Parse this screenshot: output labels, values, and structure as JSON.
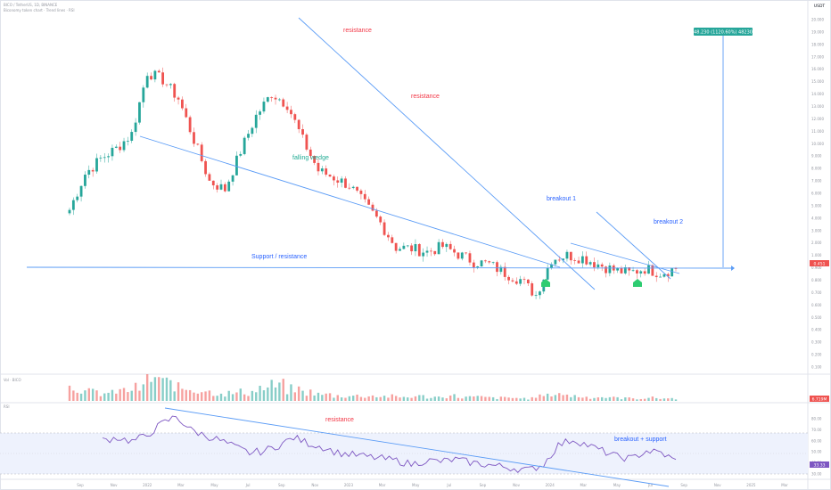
{
  "header": {
    "symbol_line": "BICO / TetherUS, 1D, BINANCE",
    "sub_line": "Biconomy token chart · Trend lines · RSI"
  },
  "price_axis": {
    "currency_label": "USDT",
    "ticks": [
      "20.000",
      "19.000",
      "18.000",
      "17.000",
      "16.000",
      "15.000",
      "14.000",
      "13.000",
      "12.000",
      "11.000",
      "10.000",
      "9.000",
      "8.000",
      "7.000",
      "6.000",
      "5.000",
      "4.000",
      "3.000",
      "2.000",
      "1.000",
      "0.900",
      "0.800",
      "0.700",
      "0.600",
      "0.500",
      "0.400",
      "0.300",
      "0.200",
      "0.100"
    ],
    "current_price": "0.451",
    "volume_label": "6.719M",
    "rsi_value": "33.33"
  },
  "time_axis": [
    "Sep",
    "Nov",
    "2022",
    "Mar",
    "May",
    "Jul",
    "Sep",
    "Nov",
    "2023",
    "Mar",
    "May",
    "Jul",
    "Sep",
    "Nov",
    "2024",
    "Mar",
    "May",
    "Jul",
    "Sep",
    "Nov",
    "2025",
    "Mar"
  ],
  "rsi_axis": [
    "80.00",
    "70.00",
    "60.00",
    "50.00",
    "40.00",
    "30.00"
  ],
  "panes": {
    "volume_title": "Vol · BICO",
    "rsi_title": "RSI"
  },
  "annotations": {
    "resistance_top": "resistance",
    "resistance_mid": "resistance",
    "falling_wedge": "falling wedge",
    "support_resistance": "Support / resistance",
    "breakout_1": "breakout 1",
    "breakout_2": "breakout 2",
    "rsi_resistance": "resistance",
    "rsi_breakout_support": "breakout + support",
    "target_label": "48.230 (1120.60%) 48230"
  },
  "colors": {
    "up": "#26a69a",
    "down": "#ef5350",
    "trend_line": "#5b9cf6",
    "annotation_red": "#f23645",
    "annotation_teal": "#22ab94",
    "annotation_blue": "#2962ff",
    "rsi_line": "#7e57c2",
    "rsi_band": "#eef2fd",
    "marker_green": "#2ecc71",
    "target_box": "#26a69a"
  },
  "chart_data": [
    {
      "type": "candlestick",
      "title": "BICO / TetherUS, 1D, BINANCE",
      "y_scale": "log",
      "ylim": [
        0.1,
        20
      ],
      "x": [
        "2021-09",
        "2021-10",
        "2021-11",
        "2021-12",
        "2022-01",
        "2022-02",
        "2022-03",
        "2022-04",
        "2022-05",
        "2022-06",
        "2022-07",
        "2022-08",
        "2022-09",
        "2022-10",
        "2022-11",
        "2022-12",
        "2023-01",
        "2023-02",
        "2023-03",
        "2023-04",
        "2023-05",
        "2023-06",
        "2023-07",
        "2023-08",
        "2023-09",
        "2023-10",
        "2023-11",
        "2023-12",
        "2024-01",
        "2024-02",
        "2024-03",
        "2024-04",
        "2024-05",
        "2024-06",
        "2024-07",
        "2024-08",
        "2024-09",
        "2024-10",
        "2024-11",
        "2024-12"
      ],
      "close": [
        1.1,
        1.9,
        2.4,
        2.8,
        3.5,
        9.0,
        8.0,
        6.0,
        3.2,
        1.7,
        1.5,
        2.7,
        4.6,
        6.5,
        5.5,
        3.2,
        2.0,
        1.8,
        1.6,
        1.2,
        0.9,
        0.62,
        0.61,
        0.58,
        0.63,
        0.56,
        0.5,
        0.48,
        0.42,
        0.38,
        0.3,
        0.52,
        0.55,
        0.53,
        0.48,
        0.44,
        0.42,
        0.45,
        0.42,
        0.451
      ]
    },
    {
      "type": "bar",
      "title": "Vol · BICO",
      "values_relative": [
        0.55,
        0.35,
        0.3,
        0.4,
        0.5,
        0.9,
        0.7,
        0.5,
        0.45,
        0.35,
        0.3,
        0.35,
        0.5,
        0.6,
        0.45,
        0.35,
        0.25,
        0.2,
        0.2,
        0.2,
        0.18,
        0.15,
        0.18,
        0.15,
        0.2,
        0.15,
        0.15,
        0.12,
        0.12,
        0.1,
        0.2,
        0.3,
        0.2,
        0.15,
        0.15,
        0.12,
        0.1,
        0.12,
        0.1,
        0.1
      ]
    },
    {
      "type": "line",
      "title": "RSI",
      "ylim": [
        20,
        85
      ],
      "values": [
        55,
        58,
        54,
        60,
        72,
        80,
        66,
        60,
        55,
        48,
        42,
        44,
        50,
        58,
        52,
        48,
        42,
        40,
        38,
        36,
        34,
        30,
        34,
        33,
        35,
        32,
        30,
        28,
        26,
        24,
        30,
        50,
        56,
        50,
        44,
        38,
        36,
        44,
        42,
        33.33
      ]
    }
  ]
}
